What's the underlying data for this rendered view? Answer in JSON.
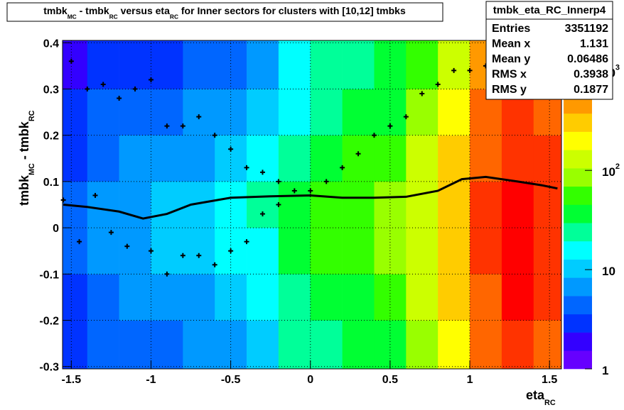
{
  "chart_data": {
    "type": "heatmap",
    "title_parts": [
      {
        "text": "tmbk"
      },
      {
        "text": "MC",
        "sub": true
      },
      {
        "text": " - tmbk"
      },
      {
        "text": "RC",
        "sub": true
      },
      {
        "text": " versus eta"
      },
      {
        "text": "RC",
        "sub": true
      },
      {
        "text": " for Inner sectors for clusters with [10,12] tmbks"
      }
    ],
    "xlabel_parts": [
      {
        "text": "eta"
      },
      {
        "text": "RC",
        "sub": true
      }
    ],
    "ylabel_parts": [
      {
        "text": "tmbk"
      },
      {
        "text": "MC",
        "sub": true
      },
      {
        "text": " - tmbk"
      },
      {
        "text": "RC",
        "sub": true
      }
    ],
    "xlim": [
      -1.555,
      1.575
    ],
    "ylim": [
      -0.305,
      0.405
    ],
    "xticks": [
      -1.5,
      -1,
      -0.5,
      0,
      0.5,
      1,
      1.5
    ],
    "yticks": [
      -0.3,
      -0.2,
      -0.1,
      0,
      0.1,
      0.2,
      0.3,
      0.4
    ],
    "grid": true,
    "zlim": [
      1,
      2040
    ],
    "zlog": true,
    "zticks": [
      {
        "value": 1,
        "label": "1"
      },
      {
        "value": 10,
        "label": "10"
      },
      {
        "value": 100,
        "label": "10",
        "sup": "2"
      },
      {
        "value": 1000,
        "label": "10",
        "sup": "3"
      }
    ],
    "palette": [
      "#6600ff",
      "#3300ff",
      "#0033ff",
      "#0066ff",
      "#0099ff",
      "#00ccff",
      "#00ffff",
      "#00ff99",
      "#00ff33",
      "#33ff00",
      "#99ff00",
      "#ccff00",
      "#ffff00",
      "#ffcc00",
      "#ff9900",
      "#ff6600",
      "#ff3300",
      "#ff0000"
    ],
    "xbins": [
      -1.555,
      -1.4,
      -1.2,
      -1.0,
      -0.8,
      -0.6,
      -0.4,
      -0.2,
      0,
      0.2,
      0.4,
      0.6,
      0.8,
      1.0,
      1.2,
      1.4,
      1.575
    ],
    "ybins": [
      -0.305,
      -0.2,
      -0.1,
      0,
      0.1,
      0.2,
      0.3,
      0.405
    ],
    "z": [
      [
        3,
        4,
        5,
        5,
        6,
        8,
        12,
        20,
        25,
        30,
        40,
        80,
        200,
        600,
        1300,
        800
      ],
      [
        3,
        5,
        6,
        7,
        8,
        10,
        14,
        22,
        35,
        45,
        60,
        110,
        250,
        800,
        1500,
        1000
      ],
      [
        4,
        6,
        8,
        9,
        10,
        13,
        18,
        30,
        50,
        60,
        80,
        130,
        300,
        900,
        1500,
        1000
      ],
      [
        4,
        6,
        8,
        9,
        11,
        14,
        20,
        35,
        55,
        65,
        85,
        140,
        300,
        900,
        1500,
        1000
      ],
      [
        3,
        5,
        6,
        7,
        8,
        10,
        14,
        25,
        40,
        50,
        65,
        110,
        250,
        800,
        1300,
        900
      ],
      [
        3,
        4,
        4,
        5,
        6,
        7,
        10,
        18,
        28,
        35,
        45,
        80,
        200,
        600,
        1100,
        700
      ],
      [
        2,
        3,
        3,
        3,
        4,
        5,
        7,
        14,
        20,
        28,
        35,
        60,
        150,
        500,
        900,
        600
      ]
    ],
    "series": [
      {
        "name": "profile",
        "color": "#000000",
        "mode": "line",
        "x": [
          -1.55,
          -1.4,
          -1.2,
          -1.05,
          -0.9,
          -0.75,
          -0.5,
          -0.25,
          0,
          0.2,
          0.4,
          0.6,
          0.8,
          0.95,
          1.1,
          1.3,
          1.45,
          1.55
        ],
        "y": [
          0.05,
          0.045,
          0.035,
          0.02,
          0.03,
          0.05,
          0.065,
          0.068,
          0.07,
          0.065,
          0.065,
          0.067,
          0.08,
          0.105,
          0.11,
          0.1,
          0.092,
          0.085
        ]
      },
      {
        "name": "lower",
        "color": "#000000",
        "mode": "points",
        "x": [
          -1.55,
          -1.45,
          -1.35,
          -1.25,
          -1.15,
          -1.0,
          -0.9,
          -0.8,
          -0.7,
          -0.6,
          -0.5,
          -0.4,
          -0.3,
          -0.2,
          -0.1
        ],
        "y": [
          0.06,
          -0.03,
          0.07,
          -0.01,
          -0.04,
          -0.05,
          -0.1,
          -0.06,
          -0.06,
          -0.08,
          -0.05,
          -0.03,
          0.03,
          0.05,
          0.08
        ]
      },
      {
        "name": "upper",
        "color": "#000000",
        "mode": "points",
        "x": [
          -1.5,
          -1.4,
          -1.3,
          -1.2,
          -1.1,
          -1.0,
          -0.9,
          -0.8,
          -0.7,
          -0.6,
          -0.5,
          -0.4,
          -0.3,
          -0.2,
          0,
          0.1,
          0.2,
          0.3,
          0.4,
          0.5,
          0.6,
          0.7,
          0.8,
          0.9,
          1.0,
          1.1,
          1.2,
          1.3,
          1.4,
          1.5
        ],
        "y": [
          0.36,
          0.3,
          0.31,
          0.28,
          0.3,
          0.32,
          0.22,
          0.22,
          0.24,
          0.2,
          0.17,
          0.13,
          0.12,
          0.1,
          0.08,
          0.1,
          0.13,
          0.16,
          0.2,
          0.22,
          0.24,
          0.29,
          0.31,
          0.34,
          0.34,
          0.35,
          0.35,
          0.36,
          0.37,
          0.37
        ]
      }
    ],
    "stats": {
      "name": "tmbk_eta_RC_Innerp4",
      "rows": [
        {
          "label": "Entries",
          "value": 3351192
        },
        {
          "label": "Mean x",
          "value": 1.131
        },
        {
          "label": "Mean y",
          "value": 0.06486
        },
        {
          "label": "RMS x",
          "value": 0.3938
        },
        {
          "label": "RMS y",
          "value": 0.1877
        }
      ]
    }
  }
}
